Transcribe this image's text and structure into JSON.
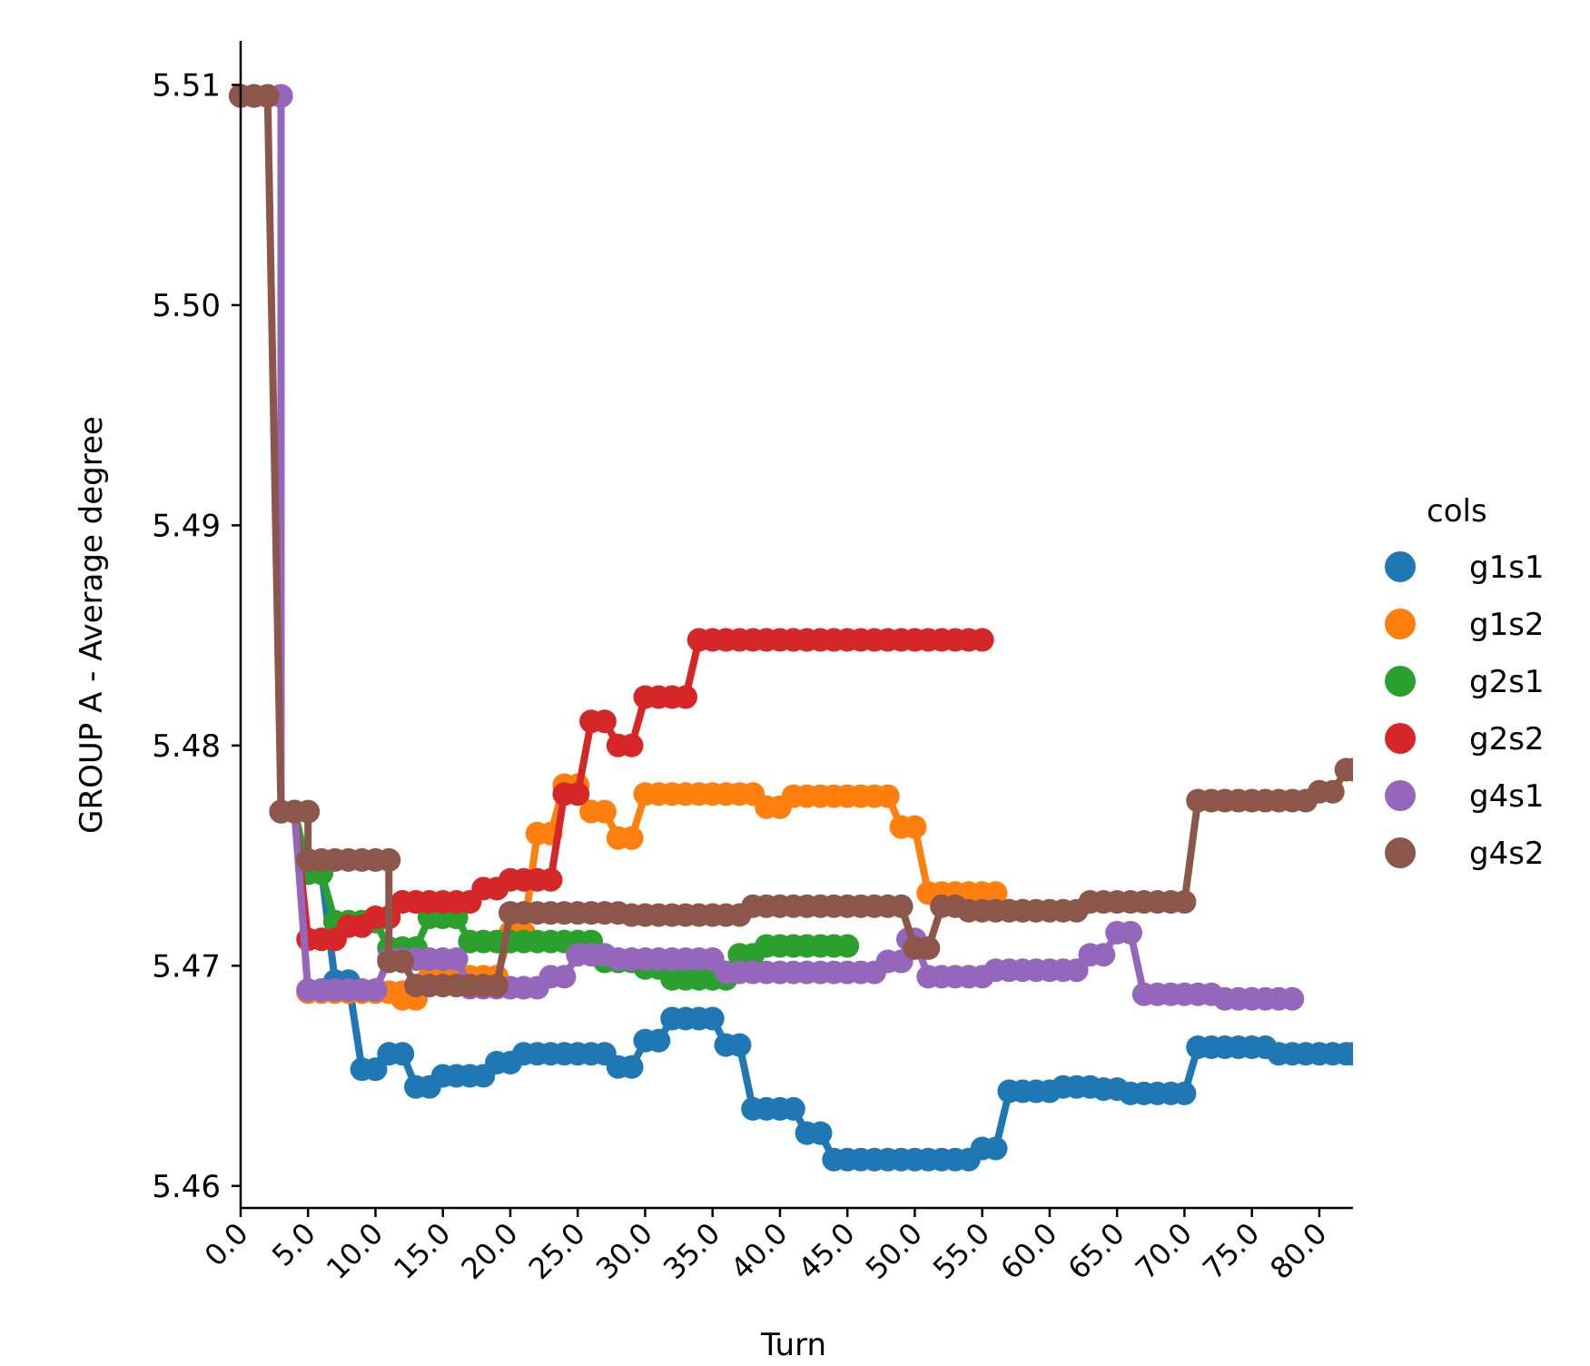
{
  "chart_data": {
    "type": "line",
    "title": "",
    "xlabel": "Turn",
    "ylabel": "GROUP A - Average degree",
    "xlim": [
      0,
      82.5
    ],
    "ylim": [
      5.459,
      5.512
    ],
    "x_ticks": [
      0,
      5,
      10,
      15,
      20,
      25,
      30,
      35,
      40,
      45,
      50,
      55,
      60,
      65,
      70,
      75,
      80
    ],
    "x_tick_labels": [
      "0.0",
      "5.0",
      "10.0",
      "15.0",
      "20.0",
      "25.0",
      "30.0",
      "35.0",
      "40.0",
      "45.0",
      "50.0",
      "55.0",
      "60.0",
      "65.0",
      "70.0",
      "75.0",
      "80.0"
    ],
    "y_ticks": [
      5.46,
      5.47,
      5.48,
      5.49,
      5.5,
      5.51
    ],
    "y_tick_labels": [
      "5.46",
      "5.47",
      "5.48",
      "5.49",
      "5.50",
      "5.51"
    ],
    "legend": {
      "title": "cols",
      "placement": "right"
    },
    "grid": false,
    "series": [
      {
        "name": "g1s1",
        "color": "#1f77b4",
        "segments": [
          [
            0,
            5.5095,
            3,
            5.5095
          ],
          [
            3,
            5.477,
            4,
            5.477
          ],
          [
            5,
            5.4743,
            6,
            5.4743
          ],
          [
            7,
            5.4693,
            8,
            5.4693
          ],
          [
            9,
            5.4653,
            10,
            5.4653
          ],
          [
            11,
            5.466,
            12,
            5.466
          ],
          [
            13,
            5.4645,
            14,
            5.4645
          ],
          [
            15,
            5.465,
            18,
            5.465
          ],
          [
            19,
            5.4656,
            20,
            5.4656
          ],
          [
            21,
            5.466,
            27,
            5.466
          ],
          [
            28,
            5.4654,
            29,
            5.4654
          ],
          [
            30,
            5.4666,
            31,
            5.4666
          ],
          [
            32,
            5.4676,
            35,
            5.4676
          ],
          [
            36,
            5.4664,
            37,
            5.4664
          ],
          [
            38,
            5.4635,
            41,
            5.4635
          ],
          [
            42,
            5.4624,
            43,
            5.4624
          ],
          [
            44,
            5.4612,
            54,
            5.4612
          ],
          [
            55,
            5.4617,
            56,
            5.4617
          ],
          [
            57,
            5.4643,
            60,
            5.4643
          ],
          [
            61,
            5.4645,
            63,
            5.4645
          ],
          [
            64,
            5.4644,
            65,
            5.4644
          ],
          [
            66,
            5.4642,
            70,
            5.4642
          ],
          [
            71,
            5.4663,
            76,
            5.4663
          ],
          [
            77,
            5.466,
            82.5,
            5.466
          ]
        ]
      },
      {
        "name": "g1s2",
        "color": "#ff7f0e",
        "segments": [
          [
            0,
            5.5095,
            3,
            5.5095
          ],
          [
            3,
            5.477,
            4,
            5.477
          ],
          [
            5,
            5.4688,
            12,
            5.4688
          ],
          [
            12,
            5.4685,
            13,
            5.4685
          ],
          [
            14,
            5.4695,
            19,
            5.4695
          ],
          [
            20,
            5.4715,
            21,
            5.4715
          ],
          [
            22,
            5.476,
            23,
            5.476
          ],
          [
            24,
            5.4782,
            25,
            5.4782
          ],
          [
            26,
            5.477,
            27,
            5.477
          ],
          [
            28,
            5.4758,
            29,
            5.4758
          ],
          [
            30,
            5.4778,
            38,
            5.4778
          ],
          [
            39,
            5.4772,
            40,
            5.4772
          ],
          [
            41,
            5.4777,
            48,
            5.4777
          ],
          [
            49,
            5.4763,
            50,
            5.4763
          ],
          [
            51,
            5.4733,
            56,
            5.4733
          ],
          [
            57,
            5.4725,
            58,
            5.4725
          ]
        ]
      },
      {
        "name": "g2s1",
        "color": "#2ca02c",
        "segments": [
          [
            0,
            5.5095,
            3,
            5.5095
          ],
          [
            3,
            5.477,
            4,
            5.477
          ],
          [
            5,
            5.4742,
            6,
            5.4742
          ],
          [
            7,
            5.472,
            10,
            5.472
          ],
          [
            11,
            5.4708,
            13,
            5.4708
          ],
          [
            14,
            5.4722,
            16,
            5.4722
          ],
          [
            17,
            5.4711,
            26,
            5.4711
          ],
          [
            27,
            5.4702,
            29,
            5.4702
          ],
          [
            30,
            5.4699,
            31,
            5.4699
          ],
          [
            32,
            5.4694,
            36,
            5.4694
          ],
          [
            37,
            5.4705,
            38,
            5.4705
          ],
          [
            39,
            5.4709,
            45,
            5.4709
          ]
        ]
      },
      {
        "name": "g2s2",
        "color": "#d62728",
        "segments": [
          [
            0,
            5.5095,
            3,
            5.5095
          ],
          [
            3,
            5.477,
            4,
            5.477
          ],
          [
            5,
            5.4712,
            7,
            5.4712
          ],
          [
            8,
            5.4718,
            9,
            5.4718
          ],
          [
            10,
            5.4722,
            11,
            5.4722
          ],
          [
            12,
            5.4729,
            17,
            5.4729
          ],
          [
            18,
            5.4735,
            19,
            5.4735
          ],
          [
            20,
            5.4739,
            23,
            5.4739
          ],
          [
            24,
            5.4778,
            25,
            5.4778
          ],
          [
            26,
            5.4811,
            27,
            5.4811
          ],
          [
            28,
            5.48,
            29,
            5.48
          ],
          [
            30,
            5.4822,
            33,
            5.4822
          ],
          [
            34,
            5.4848,
            55,
            5.4848
          ]
        ]
      },
      {
        "name": "g4s1",
        "color": "#9467bd",
        "segments": [
          [
            0,
            5.5095,
            3,
            5.5095
          ],
          [
            3,
            5.477,
            4,
            5.477
          ],
          [
            5,
            5.4689,
            10,
            5.4689
          ],
          [
            11,
            5.4703,
            16,
            5.4703
          ],
          [
            17,
            5.469,
            22,
            5.469
          ],
          [
            23,
            5.4695,
            24,
            5.4695
          ],
          [
            25,
            5.4705,
            27,
            5.4705
          ],
          [
            28,
            5.4703,
            35,
            5.4703
          ],
          [
            36,
            5.4697,
            47,
            5.4697
          ],
          [
            48,
            5.4702,
            49,
            5.4702
          ],
          [
            49.5,
            5.4712,
            50,
            5.4712
          ],
          [
            51,
            5.4695,
            55,
            5.4695
          ],
          [
            56,
            5.4698,
            62,
            5.4698
          ],
          [
            63,
            5.4705,
            64,
            5.4705
          ],
          [
            65,
            5.4715,
            66,
            5.4715
          ],
          [
            67,
            5.4687,
            72,
            5.4687
          ],
          [
            73,
            5.4685,
            78,
            5.4685
          ]
        ]
      },
      {
        "name": "g4s2",
        "color": "#8c564b",
        "segments": [
          [
            0,
            5.5095,
            2,
            5.5095
          ],
          [
            3,
            5.477,
            5,
            5.477
          ],
          [
            5,
            5.4748,
            11,
            5.4748
          ],
          [
            11,
            5.4702,
            12,
            5.4702
          ],
          [
            13,
            5.4691,
            19,
            5.4691
          ],
          [
            20,
            5.4724,
            28,
            5.4724
          ],
          [
            29,
            5.4723,
            37,
            5.4723
          ],
          [
            38,
            5.4727,
            49,
            5.4727
          ],
          [
            50,
            5.4708,
            51,
            5.4708
          ],
          [
            52,
            5.4727,
            53,
            5.4727
          ],
          [
            54,
            5.4725,
            62,
            5.4725
          ],
          [
            63,
            5.4729,
            70,
            5.4729
          ],
          [
            71,
            5.4775,
            79,
            5.4775
          ],
          [
            80,
            5.4779,
            81,
            5.4779
          ],
          [
            82,
            5.4789,
            82.5,
            5.4789
          ]
        ]
      }
    ]
  }
}
